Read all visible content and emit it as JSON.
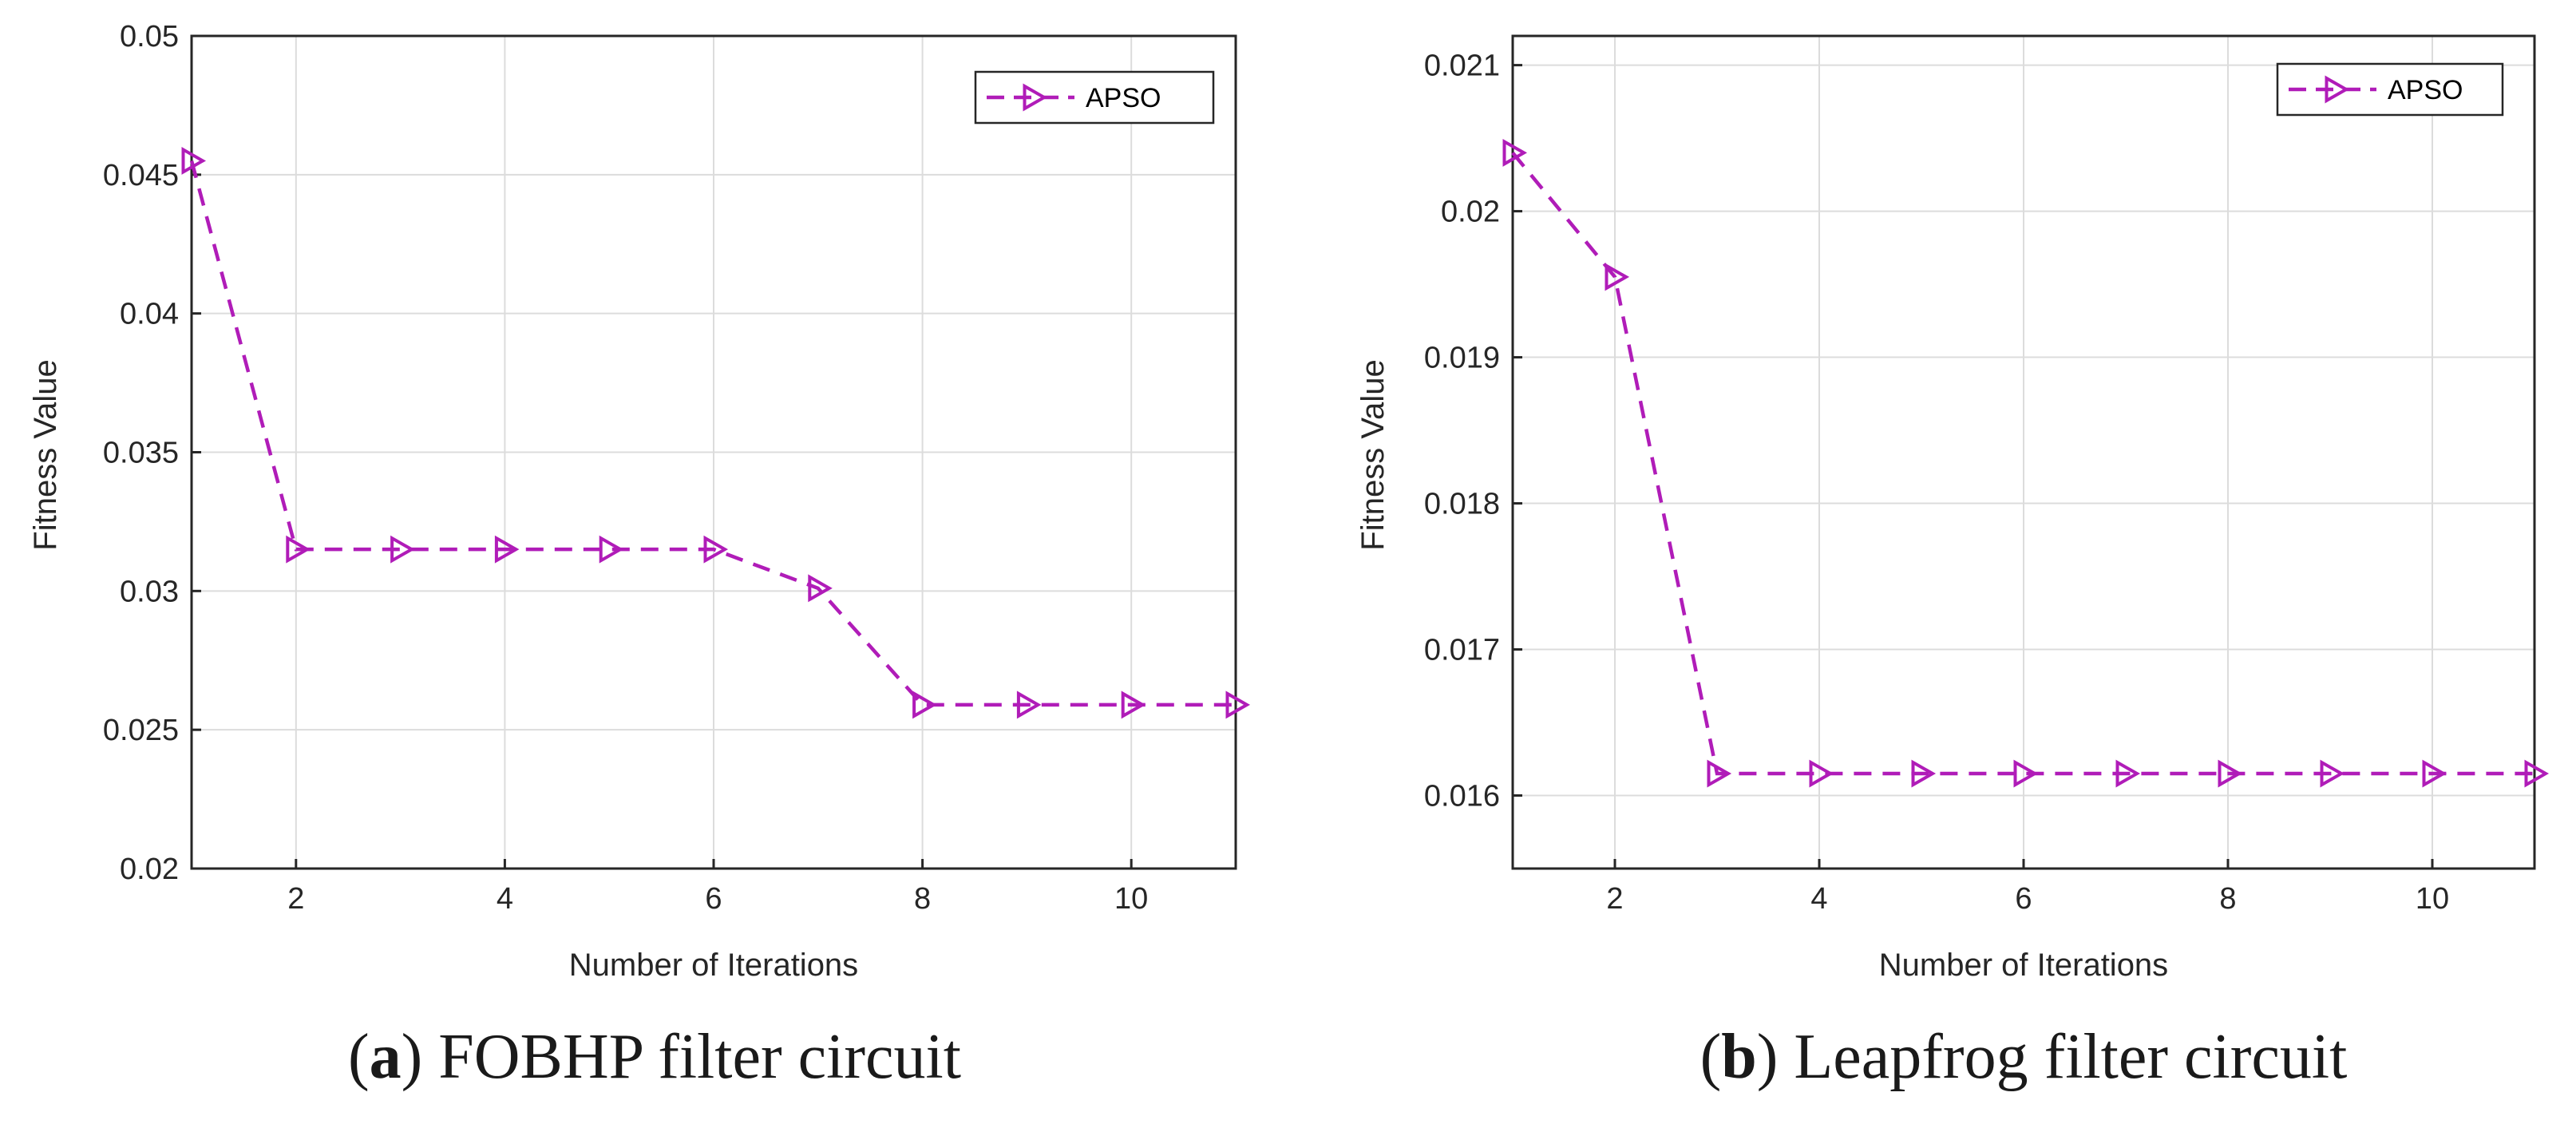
{
  "series_color": "#b01cb8",
  "chart_data": [
    {
      "type": "line",
      "panel_label": "a",
      "caption": "FOBHP filter circuit",
      "xlabel": "Number of Iterations",
      "ylabel": "Fitness Value",
      "xlim": [
        1,
        11
      ],
      "ylim": [
        0.02,
        0.05
      ],
      "xticks": [
        2,
        4,
        6,
        8,
        10
      ],
      "yticks": [
        0.02,
        0.025,
        0.03,
        0.035,
        0.04,
        0.045,
        0.05
      ],
      "ytick_labels": [
        "0.02",
        "0.025",
        "0.03",
        "0.035",
        "0.04",
        "0.045",
        "0.05"
      ],
      "grid": true,
      "legend_position": "top-right",
      "series": [
        {
          "name": "APSO",
          "marker": "right-triangle",
          "line_style": "dashed",
          "x": [
            1,
            2,
            3,
            4,
            5,
            6,
            7,
            8,
            9,
            10,
            11
          ],
          "values": [
            0.0455,
            0.0315,
            0.0315,
            0.0315,
            0.0315,
            0.0315,
            0.0301,
            0.0259,
            0.0259,
            0.0259,
            0.0259
          ]
        }
      ]
    },
    {
      "type": "line",
      "panel_label": "b",
      "caption": "Leapfrog filter circuit",
      "xlabel": "Number of Iterations",
      "ylabel": "Fitness Value",
      "xlim": [
        1,
        11
      ],
      "ylim": [
        0.0155,
        0.0212
      ],
      "xticks": [
        2,
        4,
        6,
        8,
        10
      ],
      "yticks": [
        0.016,
        0.017,
        0.018,
        0.019,
        0.02,
        0.021
      ],
      "ytick_labels": [
        "0.016",
        "0.017",
        "0.018",
        "0.019",
        "0.02",
        "0.021"
      ],
      "grid": true,
      "legend_position": "top-right",
      "series": [
        {
          "name": "APSO",
          "marker": "right-triangle",
          "line_style": "dashed",
          "x": [
            1,
            2,
            3,
            4,
            5,
            6,
            7,
            8,
            9,
            10,
            11
          ],
          "values": [
            0.0204,
            0.01955,
            0.01615,
            0.01615,
            0.01615,
            0.01615,
            0.01615,
            0.01615,
            0.01615,
            0.01615,
            0.01615
          ]
        }
      ]
    }
  ]
}
